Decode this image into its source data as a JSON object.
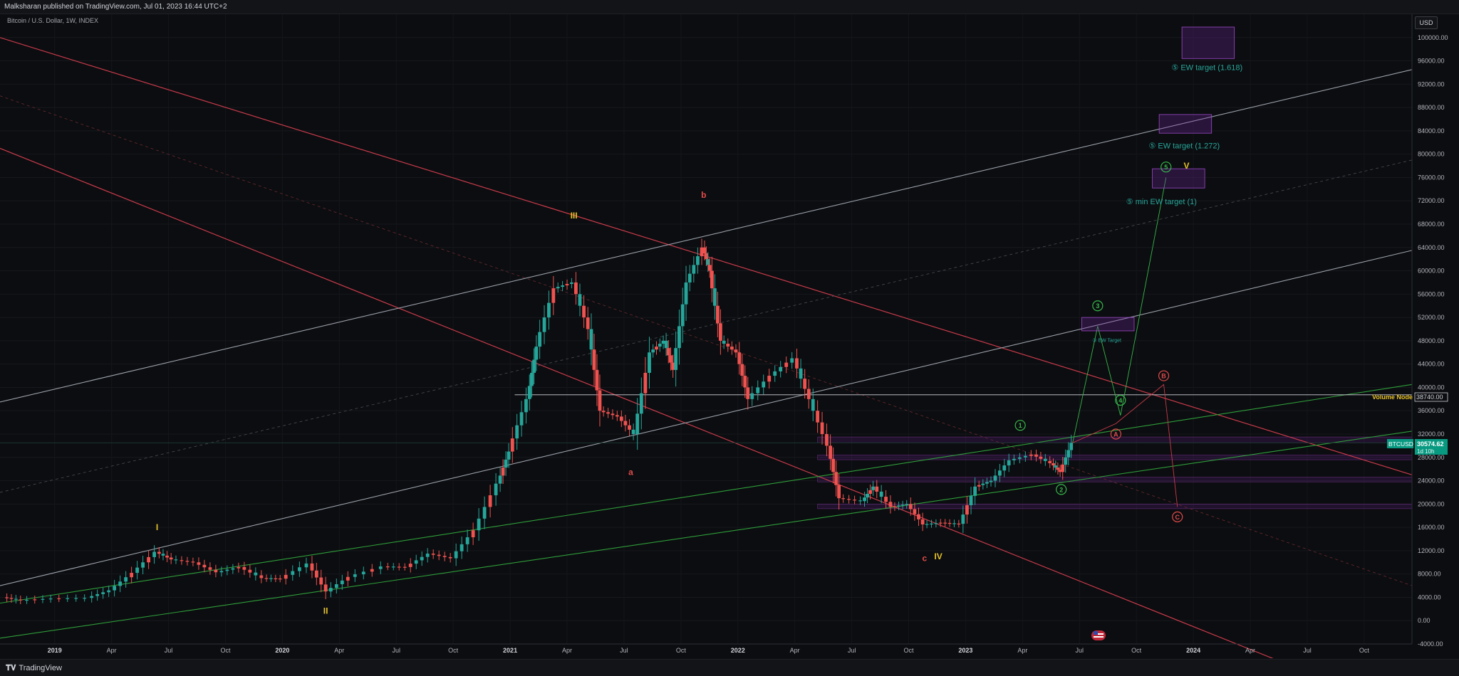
{
  "header": {
    "publisher_line": "Malksharan published on TradingView.com, Jul 01, 2023 16:44 UTC+2"
  },
  "footer": {
    "brand": "TradingView"
  },
  "chart_data": {
    "type": "candlestick",
    "symbol_title": "Bitcoin / U.S. Dollar, 1W, INDEX",
    "currency_button": "USD",
    "y_ticks": [
      "100000.00",
      "96000.00",
      "92000.00",
      "88000.00",
      "84000.00",
      "80000.00",
      "76000.00",
      "72000.00",
      "68000.00",
      "64000.00",
      "60000.00",
      "56000.00",
      "52000.00",
      "48000.00",
      "44000.00",
      "40000.00",
      "36000.00",
      "32000.00",
      "28000.00",
      "24000.00",
      "20000.00",
      "16000.00",
      "12000.00",
      "8000.00",
      "4000.00",
      "0.00",
      "-4000.00"
    ],
    "y_tick_values": [
      100000,
      96000,
      92000,
      88000,
      84000,
      80000,
      76000,
      72000,
      68000,
      64000,
      60000,
      56000,
      52000,
      48000,
      44000,
      40000,
      36000,
      32000,
      28000,
      24000,
      20000,
      16000,
      12000,
      8000,
      4000,
      0,
      -4000
    ],
    "ylim": [
      -4000,
      104000
    ],
    "x_ticks": [
      {
        "label": "2019",
        "t": 2019.0,
        "bold": true
      },
      {
        "label": "Apr",
        "t": 2019.25
      },
      {
        "label": "Jul",
        "t": 2019.5
      },
      {
        "label": "Oct",
        "t": 2019.75
      },
      {
        "label": "2020",
        "t": 2020.0,
        "bold": true
      },
      {
        "label": "Apr",
        "t": 2020.25
      },
      {
        "label": "Jul",
        "t": 2020.5
      },
      {
        "label": "Oct",
        "t": 2020.75
      },
      {
        "label": "2021",
        "t": 2021.0,
        "bold": true
      },
      {
        "label": "Apr",
        "t": 2021.25
      },
      {
        "label": "Jul",
        "t": 2021.5
      },
      {
        "label": "Oct",
        "t": 2021.75
      },
      {
        "label": "2022",
        "t": 2022.0,
        "bold": true
      },
      {
        "label": "Apr",
        "t": 2022.25
      },
      {
        "label": "Jul",
        "t": 2022.5
      },
      {
        "label": "Oct",
        "t": 2022.75
      },
      {
        "label": "2023",
        "t": 2023.0,
        "bold": true
      },
      {
        "label": "Apr",
        "t": 2023.25
      },
      {
        "label": "Jul",
        "t": 2023.5
      },
      {
        "label": "Oct",
        "t": 2023.75
      },
      {
        "label": "2024",
        "t": 2024.0,
        "bold": true
      },
      {
        "label": "Apr",
        "t": 2024.25
      },
      {
        "label": "Jul",
        "t": 2024.5
      },
      {
        "label": "Oct",
        "t": 2024.75
      }
    ],
    "xlim": [
      2018.76,
      2024.96
    ],
    "price_path": [
      [
        2018.78,
        4000
      ],
      [
        2018.86,
        3500
      ],
      [
        2019.0,
        3800
      ],
      [
        2019.15,
        3900
      ],
      [
        2019.25,
        5200
      ],
      [
        2019.35,
        8200
      ],
      [
        2019.45,
        11800
      ],
      [
        2019.52,
        10500
      ],
      [
        2019.62,
        10000
      ],
      [
        2019.72,
        8300
      ],
      [
        2019.82,
        9200
      ],
      [
        2019.92,
        7300
      ],
      [
        2020.0,
        7200
      ],
      [
        2020.12,
        9800
      ],
      [
        2020.2,
        5000
      ],
      [
        2020.3,
        7500
      ],
      [
        2020.45,
        9300
      ],
      [
        2020.55,
        9200
      ],
      [
        2020.65,
        11500
      ],
      [
        2020.75,
        10700
      ],
      [
        2020.85,
        15500
      ],
      [
        2020.95,
        23500
      ],
      [
        2021.0,
        29000
      ],
      [
        2021.08,
        38000
      ],
      [
        2021.12,
        47000
      ],
      [
        2021.2,
        57000
      ],
      [
        2021.28,
        58000
      ],
      [
        2021.35,
        50000
      ],
      [
        2021.4,
        36000
      ],
      [
        2021.48,
        35000
      ],
      [
        2021.55,
        32000
      ],
      [
        2021.62,
        46000
      ],
      [
        2021.68,
        48000
      ],
      [
        2021.72,
        43000
      ],
      [
        2021.78,
        58000
      ],
      [
        2021.85,
        64000
      ],
      [
        2021.88,
        60000
      ],
      [
        2021.93,
        48000
      ],
      [
        2022.0,
        46000
      ],
      [
        2022.05,
        38000
      ],
      [
        2022.15,
        42000
      ],
      [
        2022.25,
        45000
      ],
      [
        2022.32,
        38000
      ],
      [
        2022.4,
        30000
      ],
      [
        2022.45,
        21000
      ],
      [
        2022.55,
        20500
      ],
      [
        2022.6,
        23000
      ],
      [
        2022.68,
        19500
      ],
      [
        2022.75,
        20000
      ],
      [
        2022.82,
        16500
      ],
      [
        2022.9,
        16800
      ],
      [
        2022.98,
        16600
      ],
      [
        2023.05,
        23000
      ],
      [
        2023.12,
        24000
      ],
      [
        2023.2,
        27500
      ],
      [
        2023.3,
        28500
      ],
      [
        2023.38,
        27000
      ],
      [
        2023.42,
        25500
      ],
      [
        2023.47,
        30500
      ]
    ],
    "last_price": {
      "symbol": "BTCUSD",
      "price_label": "30574.62",
      "countdown": "1d 10h",
      "value": 30574.62
    },
    "volume_node": {
      "label": "Volume Node",
      "price_label": "38740.00",
      "value": 38740
    },
    "wave_labels": [
      {
        "text": "I",
        "t": 2019.45,
        "v": 15500,
        "color": "#e6c229"
      },
      {
        "text": "II",
        "t": 2020.19,
        "v": 1200,
        "color": "#e6c229"
      },
      {
        "text": "III",
        "t": 2021.28,
        "v": 69000,
        "color": "#e6c229"
      },
      {
        "text": "IV",
        "t": 2022.88,
        "v": 10500,
        "color": "#e6c229"
      },
      {
        "text": "V",
        "t": 2023.97,
        "v": 77500,
        "color": "#e6c229"
      },
      {
        "text": "a",
        "t": 2021.53,
        "v": 25000,
        "color": "#e04b4b"
      },
      {
        "text": "b",
        "t": 2021.85,
        "v": 72500,
        "color": "#e04b4b"
      },
      {
        "text": "c",
        "t": 2022.82,
        "v": 10200,
        "color": "#e04b4b"
      }
    ],
    "circle_labels": [
      {
        "text": "1",
        "t": 2023.24,
        "v": 33500,
        "color": "#36b84a"
      },
      {
        "text": "2",
        "t": 2023.42,
        "v": 22500,
        "color": "#36b84a"
      },
      {
        "text": "3",
        "t": 2023.58,
        "v": 54000,
        "color": "#36b84a"
      },
      {
        "text": "4",
        "t": 2023.68,
        "v": 37800,
        "color": "#36b84a"
      },
      {
        "text": "5",
        "t": 2023.88,
        "v": 77800,
        "color": "#36b84a"
      },
      {
        "text": "A",
        "t": 2023.66,
        "v": 32000,
        "color": "#e04b4b"
      },
      {
        "text": "B",
        "t": 2023.87,
        "v": 42000,
        "color": "#e04b4b"
      },
      {
        "text": "C",
        "t": 2023.93,
        "v": 17800,
        "color": "#e04b4b"
      }
    ],
    "target_boxes": [
      {
        "label": "⑤ EW target (1.618)",
        "t0": 2023.95,
        "t1": 2024.18,
        "v0": 96400,
        "v1": 101800,
        "label_t": 2024.06,
        "label_v": 94400
      },
      {
        "label": "⑤ EW target (1.272)",
        "t0": 2023.85,
        "t1": 2024.08,
        "v0": 83600,
        "v1": 86800,
        "label_t": 2023.96,
        "label_v": 81000
      },
      {
        "label": "⑤ min EW target (1)",
        "t0": 2023.82,
        "t1": 2024.05,
        "v0": 74200,
        "v1": 77500,
        "label_t": 2023.86,
        "label_v": 71400
      },
      {
        "label": "③ EW Target",
        "t0": 2023.51,
        "t1": 2023.74,
        "v0": 49700,
        "v1": 52000,
        "label_t": 2023.62,
        "label_v": 47800,
        "small": true
      }
    ]
  }
}
